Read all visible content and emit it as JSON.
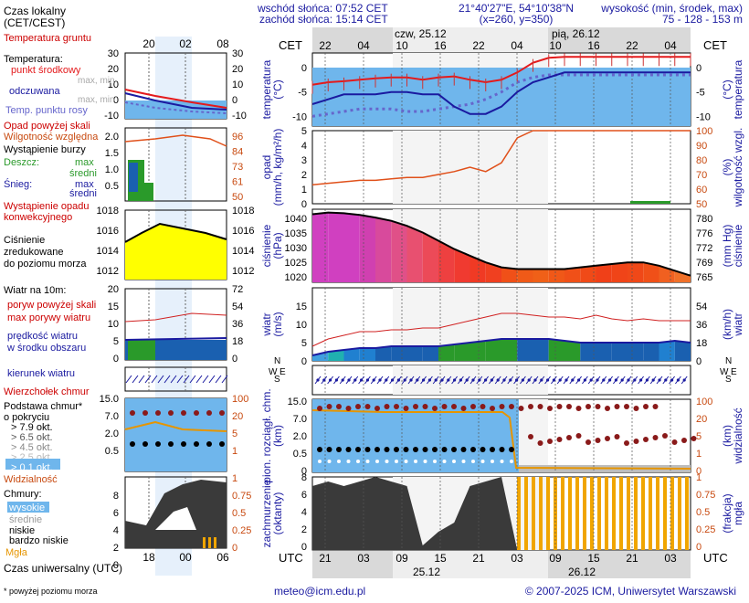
{
  "header": {
    "sunrise": "wschód słońca: 07:52 CET",
    "sunset": "zachód słońca: 15:14 CET",
    "coords": "21°40'27\"E, 54°10'38\"N",
    "grid": "(x=260,  y=350)",
    "elevation_label": "wysokość (min, środek, max)",
    "elevation_values": "75 - 128 - 153 m",
    "day1": "czw, 25.12",
    "day2": "pią, 26.12"
  },
  "top_axis": {
    "tz": "CET",
    "hours": [
      "22",
      "04",
      "10",
      "16",
      "22",
      "04",
      "10",
      "16",
      "22",
      "04"
    ]
  },
  "bottom_axis": {
    "tz": "UTC",
    "hours": [
      "21",
      "03",
      "09",
      "15",
      "21",
      "03",
      "09",
      "15",
      "21",
      "03"
    ],
    "date1": "25.12",
    "date2": "26.12"
  },
  "legend": {
    "local_time": "Czas lokalny\n(CET/CEST)",
    "local_ticks": [
      "20",
      "02",
      "08"
    ],
    "utc_label": "Czas uniwersalny (UTC)",
    "utc_ticks": [
      "18",
      "00",
      "06"
    ],
    "footnote": "* powyżej poziomu morza",
    "soil_temp": "Temperatura gruntu",
    "temp_title": "Temperatura:",
    "temp_mid": "punkt środkowy",
    "temp_maxmin": "max, min",
    "temp_perceived": "odczuwana",
    "temp_perceived_maxmin": "max, min",
    "temp_dew": "Temp. punktu rosy",
    "temp_ticks": [
      "30",
      "20",
      "10",
      "0",
      "-10"
    ],
    "precip_over": "Opad powyżej skali",
    "humidity": "Wilgotność względna",
    "storm": "Wystąpienie burzy",
    "rain": "Deszcz:",
    "snow": "Śnieg:",
    "max": "max",
    "avg": "średni",
    "conv": "Wystąpienie opadu\nkonwekcyjnego",
    "precip_ticks": [
      "2.0",
      "1.5",
      "1.0",
      "0.5"
    ],
    "hum_ticks": [
      "96",
      "84",
      "73",
      "61",
      "50"
    ],
    "pressure_title": "Ciśnienie\nzredukowane\ndo poziomu morza",
    "press_ticks": [
      "1018",
      "1016",
      "1014",
      "1012"
    ],
    "wind_title": "Wiatr na 10m:",
    "gust_over": "poryw powyżej skali",
    "gust_max": "max porywy wiatru",
    "wind_avg": "prędkość wiatru\nw środku obszaru",
    "wind_ticks": [
      "20",
      "15",
      "10",
      "5",
      "0"
    ],
    "wind_kmh_ticks": [
      "72",
      "54",
      "36",
      "18",
      "0"
    ],
    "wind_dir": "kierunek wiatru",
    "wind_chill": "Wierzchołek chmur",
    "cloud_base": "Podstawa chmur*\no pokryciu",
    "okt": [
      "> 7.9 okt.",
      "> 6.5 okt.",
      "> 4.5 okt.",
      "> 2.5 okt.",
      "> 0.1 okt."
    ],
    "visibility": "Widzialność",
    "cloud_km_ticks": [
      "15.0",
      "7.0",
      "2.0",
      "0.5"
    ],
    "vis_ticks": [
      "100",
      "20",
      "5",
      "1"
    ],
    "clouds_title": "Chmury:",
    "high": "wysokie",
    "middle": "średnie",
    "low": "niskie",
    "very_low": "bardzo niskie",
    "fog": "Mgła",
    "cloud_ticks": [
      "8",
      "6",
      "4",
      "2",
      "0"
    ],
    "fog_ticks": [
      "1",
      "0.75",
      "0.5",
      "0.25",
      "0"
    ]
  },
  "panels": {
    "temp_left": "temperatura\n(°C)",
    "temp_right": "(°C)\ntemperatura",
    "temp_ticks": [
      "0",
      "-5",
      "-10"
    ],
    "precip_left": "opad\n(mm/h, kg/m²/h)",
    "precip_right": "(%)\nwilgotność wzgl.",
    "precip_ticks": [
      "5",
      "4",
      "3",
      "2",
      "1",
      "0"
    ],
    "hum_ticks": [
      "100",
      "90",
      "80",
      "70",
      "60",
      "50"
    ],
    "press_left": "ciśnienie\n(hPa)",
    "press_right": "(mm Hg)\nciśnienie",
    "press_ticks": [
      "1040",
      "1035",
      "1030",
      "1025",
      "1020"
    ],
    "press_mm_ticks": [
      "780",
      "776",
      "772",
      "769",
      "765"
    ],
    "wind_left": "wiatr\n(m/s)",
    "wind_right": "(km/h)\nwiatr",
    "wind_ticks": [
      "15",
      "10",
      "5",
      "0"
    ],
    "wind_kmh_ticks": [
      "54",
      "36",
      "18",
      "0"
    ],
    "cloud_left": "pion. rozciągł. chm.\n(km)",
    "cloud_right": "(km)\nwidzialność",
    "cloud_ticks": [
      "15.0",
      "7.0",
      "2.0",
      "0.5",
      "0"
    ],
    "vis_ticks": [
      "100",
      "20",
      "5",
      "1",
      "0"
    ],
    "cov_left": "zachmurzenie\n(oktanty)",
    "cov_right": "(frakcja)\nmgła",
    "cov_ticks": [
      "8",
      "6",
      "4",
      "2",
      "0"
    ],
    "fog_ticks": [
      "1",
      "0.75",
      "0.5",
      "0.25",
      "0"
    ],
    "compass": {
      "n": "N",
      "w": "W",
      "s": "S",
      "e": "E"
    }
  },
  "footer": {
    "email": "meteo@icm.edu.pl",
    "copyright": "© 2007-2025 ICM, Uniwersytet Warszawski"
  },
  "chart_data": [
    {
      "type": "line",
      "ylim": [
        -12,
        3
      ],
      "series": [
        {
          "values": [
            -3.5,
            -3,
            -2.8,
            -2.5,
            -2.2,
            -2,
            -2,
            -2.5,
            -2,
            -1.8,
            -2.5,
            -3,
            -2.5,
            -1,
            1,
            2,
            2.2,
            2.2,
            2.2,
            2.2,
            2.2,
            2.2,
            2.2,
            2.2,
            2.2
          ]
        },
        {
          "values": [
            -7.5,
            -6.5,
            -5.5,
            -5.5,
            -5.5,
            -5,
            -5,
            -5.5,
            -5.5,
            -8,
            -9.5,
            -9.5,
            -8,
            -5,
            -3,
            -2,
            -1,
            -1,
            -1,
            -1,
            -1,
            -1,
            -1,
            -1,
            -1
          ]
        },
        {
          "values": [
            -10,
            -9.5,
            -9,
            -8.5,
            -8.5,
            -8.5,
            -9,
            -9,
            -8.5,
            -8,
            -7.5,
            -6.5,
            -5,
            -3,
            -2,
            -1.5,
            -1.5,
            -1.5,
            -1.5,
            -1.5,
            -1.5,
            -1.5,
            -1.5,
            -1.5,
            -1.5
          ]
        }
      ]
    },
    {
      "type": "line",
      "ylim": [
        50,
        100
      ],
      "series": [
        {
          "values": [
            63,
            64,
            65,
            66,
            66,
            67,
            68,
            68,
            70,
            72,
            75,
            72,
            78,
            95,
            100,
            100,
            100,
            100,
            100,
            100,
            100,
            100,
            100,
            100,
            100
          ]
        }
      ]
    },
    {
      "type": "area",
      "ylim": [
        1020,
        1042
      ],
      "series": [
        {
          "values": [
            1040.5,
            1041,
            1040.8,
            1040.3,
            1039.5,
            1038.5,
            1037,
            1035,
            1032.5,
            1030,
            1028,
            1026,
            1024.5,
            1024,
            1024,
            1024,
            1024,
            1024.5,
            1025,
            1025.5,
            1026,
            1026,
            1025,
            1023.5,
            1022
          ]
        }
      ]
    },
    {
      "type": "line",
      "ylim": [
        0,
        20
      ],
      "series": [
        {
          "values": [
            4,
            6,
            7,
            8,
            8,
            8.5,
            8.5,
            9,
            9,
            10,
            11,
            12,
            13,
            13,
            12.5,
            12,
            12,
            11.5,
            12.5,
            11.5,
            11,
            11.5,
            11,
            11,
            11
          ]
        },
        {
          "values": [
            1.5,
            2.5,
            3,
            3.5,
            3.5,
            4,
            4,
            4,
            4,
            4.5,
            5,
            5.5,
            6,
            6,
            6,
            6,
            5.5,
            5,
            5,
            5,
            5,
            5,
            5,
            5.5,
            5
          ]
        }
      ]
    },
    {
      "type": "area",
      "ylim": [
        0,
        8
      ],
      "series": [
        {
          "values": [
            7,
            7.5,
            7,
            7.5,
            8,
            7.5,
            7,
            0.5,
            2,
            3,
            7,
            7.5,
            8,
            0,
            0,
            0,
            0,
            0,
            0,
            0,
            0,
            0,
            0,
            0,
            0
          ]
        }
      ]
    }
  ]
}
